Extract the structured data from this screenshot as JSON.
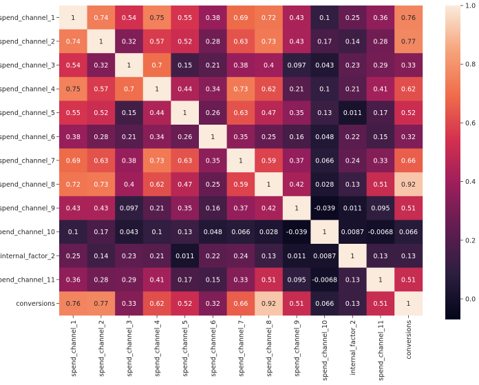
{
  "chart_data": {
    "type": "heatmap",
    "title": "",
    "xlabel": "",
    "ylabel": "",
    "labels": [
      "spend_channel_1",
      "spend_channel_2",
      "spend_channel_3",
      "spend_channel_4",
      "spend_channel_5",
      "spend_channel_6",
      "spend_channel_7",
      "spend_channel_8",
      "spend_channel_9",
      "spend_channel_10",
      "internal_factor_2",
      "spend_channel_11",
      "conversions"
    ],
    "values": [
      [
        "1",
        "0.74",
        "0.54",
        "0.75",
        "0.55",
        "0.38",
        "0.69",
        "0.72",
        "0.43",
        "0.1",
        "0.25",
        "0.36",
        "0.76"
      ],
      [
        "0.74",
        "1",
        "0.32",
        "0.57",
        "0.52",
        "0.28",
        "0.63",
        "0.73",
        "0.43",
        "0.17",
        "0.14",
        "0.28",
        "0.77"
      ],
      [
        "0.54",
        "0.32",
        "1",
        "0.7",
        "0.15",
        "0.21",
        "0.38",
        "0.4",
        "0.097",
        "0.043",
        "0.23",
        "0.29",
        "0.33"
      ],
      [
        "0.75",
        "0.57",
        "0.7",
        "1",
        "0.44",
        "0.34",
        "0.73",
        "0.62",
        "0.21",
        "0.1",
        "0.21",
        "0.41",
        "0.62"
      ],
      [
        "0.55",
        "0.52",
        "0.15",
        "0.44",
        "1",
        "0.26",
        "0.63",
        "0.47",
        "0.35",
        "0.13",
        "0.011",
        "0.17",
        "0.52"
      ],
      [
        "0.38",
        "0.28",
        "0.21",
        "0.34",
        "0.26",
        "1",
        "0.35",
        "0.25",
        "0.16",
        "0.048",
        "0.22",
        "0.15",
        "0.32"
      ],
      [
        "0.69",
        "0.63",
        "0.38",
        "0.73",
        "0.63",
        "0.35",
        "1",
        "0.59",
        "0.37",
        "0.066",
        "0.24",
        "0.33",
        "0.66"
      ],
      [
        "0.72",
        "0.73",
        "0.4",
        "0.62",
        "0.47",
        "0.25",
        "0.59",
        "1",
        "0.42",
        "0.028",
        "0.13",
        "0.51",
        "0.92"
      ],
      [
        "0.43",
        "0.43",
        "0.097",
        "0.21",
        "0.35",
        "0.16",
        "0.37",
        "0.42",
        "1",
        "-0.039",
        "0.011",
        "0.095",
        "0.51"
      ],
      [
        "0.1",
        "0.17",
        "0.043",
        "0.1",
        "0.13",
        "0.048",
        "0.066",
        "0.028",
        "-0.039",
        "1",
        "0.0087",
        "-0.0068",
        "0.066"
      ],
      [
        "0.25",
        "0.14",
        "0.23",
        "0.21",
        "0.011",
        "0.22",
        "0.24",
        "0.13",
        "0.011",
        "0.0087",
        "1",
        "0.13",
        "0.13"
      ],
      [
        "0.36",
        "0.28",
        "0.29",
        "0.41",
        "0.17",
        "0.15",
        "0.33",
        "0.51",
        "0.095",
        "-0.0068",
        "0.13",
        "1",
        "0.51"
      ],
      [
        "0.76",
        "0.77",
        "0.33",
        "0.62",
        "0.52",
        "0.32",
        "0.66",
        "0.92",
        "0.51",
        "0.066",
        "0.13",
        "0.51",
        "1"
      ]
    ],
    "colorbar": {
      "range": [
        -0.07,
        1.0
      ],
      "ticks": [
        "0.0",
        "0.2",
        "0.4",
        "0.6",
        "0.8",
        "1.0"
      ],
      "colormap": "rocket",
      "stops": [
        "#03051a",
        "#2b1e3e",
        "#5f1d50",
        "#9b1e5c",
        "#d3304e",
        "#ef6d4a",
        "#f6a47b",
        "#faebdd"
      ]
    },
    "annotations": true,
    "grid": false,
    "legend": "right colorbar"
  }
}
